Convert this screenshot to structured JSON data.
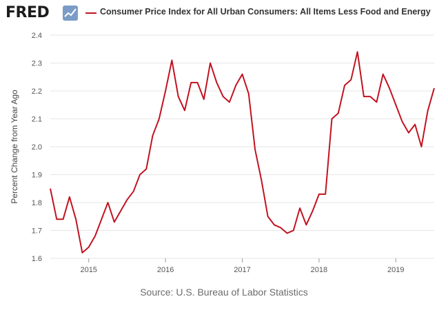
{
  "header": {
    "logo_text": "FRED",
    "logo_icon": "chart-line-icon",
    "legend_label": "Consumer Price Index for All Urban Consumers: All Items Less Food and Energy"
  },
  "source": "Source: U.S. Bureau of Labor Statistics",
  "colors": {
    "series": "#c1121f",
    "grid": "#e6e6e6",
    "logo_mark_bg": "#7a9cc6"
  },
  "chart_data": {
    "type": "line",
    "title": "",
    "xlabel": "",
    "ylabel": "Percent Change from Year Ago",
    "ylim": [
      1.6,
      2.4
    ],
    "yticks": [
      "1.6",
      "1.7",
      "1.8",
      "1.9",
      "2.0",
      "2.1",
      "2.2",
      "2.3",
      "2.4"
    ],
    "xlim": [
      "2014-07",
      "2019-07"
    ],
    "xticks": [
      {
        "date": "2015-01",
        "label": "2015"
      },
      {
        "date": "2016-01",
        "label": "2016"
      },
      {
        "date": "2017-01",
        "label": "2017"
      },
      {
        "date": "2018-01",
        "label": "2018"
      },
      {
        "date": "2019-01",
        "label": "2019"
      }
    ],
    "grid": "horizontal",
    "legend_position": "top",
    "series": [
      {
        "name": "Consumer Price Index for All Urban Consumers: All Items Less Food and Energy",
        "x": [
          "2014-07",
          "2014-08",
          "2014-09",
          "2014-10",
          "2014-11",
          "2014-12",
          "2015-01",
          "2015-02",
          "2015-03",
          "2015-04",
          "2015-05",
          "2015-06",
          "2015-07",
          "2015-08",
          "2015-09",
          "2015-10",
          "2015-11",
          "2015-12",
          "2016-01",
          "2016-02",
          "2016-03",
          "2016-04",
          "2016-05",
          "2016-06",
          "2016-07",
          "2016-08",
          "2016-09",
          "2016-10",
          "2016-11",
          "2016-12",
          "2017-01",
          "2017-02",
          "2017-03",
          "2017-04",
          "2017-05",
          "2017-06",
          "2017-07",
          "2017-08",
          "2017-09",
          "2017-10",
          "2017-11",
          "2017-12",
          "2018-01",
          "2018-02",
          "2018-03",
          "2018-04",
          "2018-05",
          "2018-06",
          "2018-07",
          "2018-08",
          "2018-09",
          "2018-10",
          "2018-11",
          "2018-12",
          "2019-01",
          "2019-02",
          "2019-03",
          "2019-04",
          "2019-05",
          "2019-06",
          "2019-07"
        ],
        "values": [
          1.85,
          1.74,
          1.74,
          1.82,
          1.74,
          1.62,
          1.64,
          1.68,
          1.74,
          1.8,
          1.73,
          1.77,
          1.81,
          1.84,
          1.9,
          1.92,
          2.04,
          2.1,
          2.2,
          2.31,
          2.18,
          2.13,
          2.23,
          2.23,
          2.17,
          2.3,
          2.23,
          2.18,
          2.16,
          2.22,
          2.26,
          2.19,
          1.99,
          1.88,
          1.75,
          1.72,
          1.71,
          1.69,
          1.7,
          1.78,
          1.72,
          1.77,
          1.83,
          1.83,
          2.1,
          2.12,
          2.22,
          2.24,
          2.34,
          2.18,
          2.18,
          2.16,
          2.26,
          2.21,
          2.15,
          2.09,
          2.05,
          2.08,
          2.0,
          2.13,
          2.21
        ]
      }
    ]
  }
}
